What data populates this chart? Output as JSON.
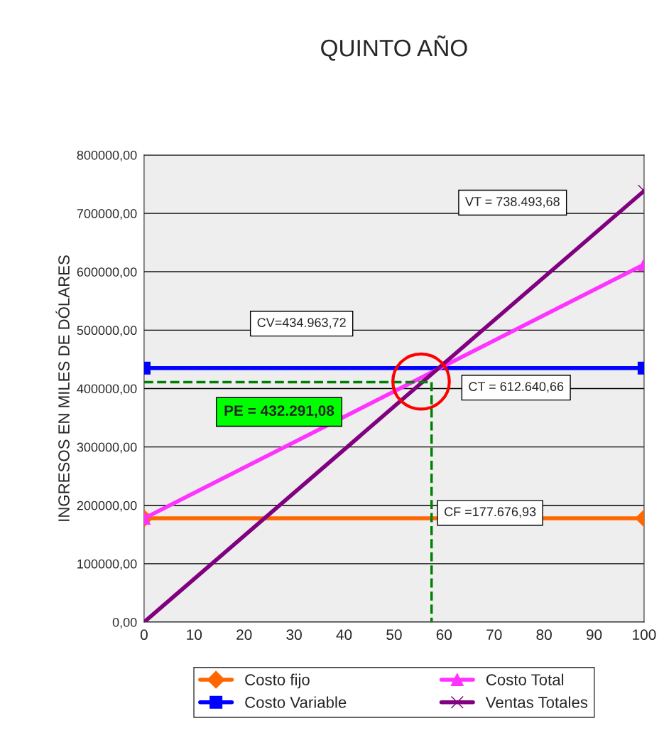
{
  "chart_data": {
    "type": "line",
    "title": "QUINTO AÑO",
    "ylabel": "INGRESOS EN MILES DE DÓLARES",
    "xlim": [
      0,
      100
    ],
    "xticks": [
      0,
      10,
      20,
      30,
      40,
      50,
      60,
      70,
      80,
      90,
      100
    ],
    "ylim": [
      0,
      800000
    ],
    "yticks": [
      {
        "value": 0,
        "label": "0,00"
      },
      {
        "value": 100000,
        "label": "100000,00"
      },
      {
        "value": 200000,
        "label": "200000,00"
      },
      {
        "value": 300000,
        "label": "300000,00"
      },
      {
        "value": 400000,
        "label": "400000,00"
      },
      {
        "value": 500000,
        "label": "500000,00"
      },
      {
        "value": 600000,
        "label": "600000,00"
      },
      {
        "value": 700000,
        "label": "700000,00"
      },
      {
        "value": 800000,
        "label": "800000,00"
      }
    ],
    "grid": "y",
    "legend": "bottom",
    "series": [
      {
        "name": "Costo fijo",
        "color": "#ff6600",
        "marker": "diamond",
        "x": [
          0,
          100
        ],
        "values": [
          177700,
          177700
        ]
      },
      {
        "name": "Costo Variable",
        "color": "#0000ff",
        "marker": "square",
        "x": [
          0,
          100
        ],
        "values": [
          435000,
          435000
        ]
      },
      {
        "name": "Costo Total",
        "color": "#ff33ff",
        "marker": "triangle",
        "x": [
          0,
          100
        ],
        "values": [
          177700,
          612600
        ]
      },
      {
        "name": "Ventas Totales",
        "color": "#800080",
        "marker": "cross",
        "x": [
          0,
          100
        ],
        "values": [
          0,
          738500
        ]
      },
      {
        "color": "#008000",
        "marker": "none",
        "line_style": "dashed",
        "x": [
          0,
          57.5,
          57.5
        ],
        "values": [
          411000,
          411000,
          0
        ]
      }
    ],
    "annotations": [
      "VT = 738.493,68",
      "CV=434.963,72",
      "CT = 612.640,66",
      "CF =177.676,93",
      "PE = 432.291,08"
    ]
  }
}
